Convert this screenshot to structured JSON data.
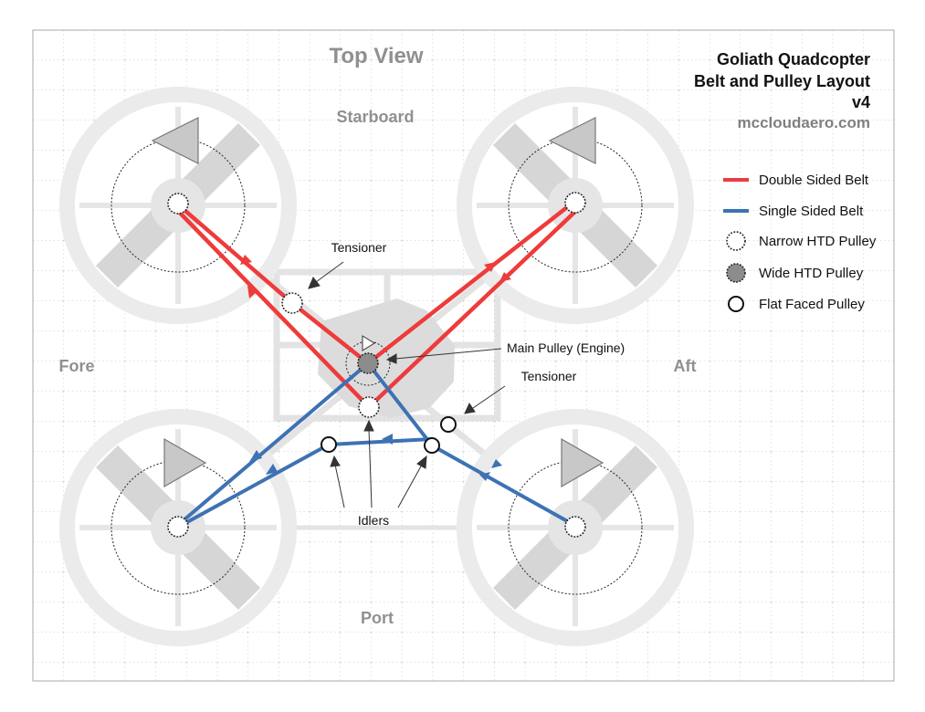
{
  "title": {
    "view": "Top View",
    "line1": "Goliath Quadcopter",
    "line2": "Belt and Pulley Layout",
    "line3": "v4",
    "website": "mccloudaero.com"
  },
  "directions": {
    "top": "Starboard",
    "bottom": "Port",
    "left": "Fore",
    "right": "Aft"
  },
  "callouts": {
    "tensioner_upper": "Tensioner",
    "tensioner_lower": "Tensioner",
    "main_pulley": "Main Pulley (Engine)",
    "idlers": "Idlers"
  },
  "legend": {
    "double_belt": "Double Sided Belt",
    "single_belt": "Single Sided Belt",
    "narrow_pulley": "Narrow HTD Pulley",
    "wide_pulley": "Wide HTD Pulley",
    "flat_pulley": "Flat Faced Pulley"
  },
  "colors": {
    "double_belt": "#ee3b3b",
    "single_belt": "#3d72b4",
    "frame": "#e2e2e2",
    "grid": "#bdbdbd",
    "text_gray": "#909090"
  },
  "icons": {
    "narrow_pulley": "dotted-circle-icon",
    "wide_pulley": "gray-serrated-circle-icon",
    "flat_pulley": "plain-circle-icon",
    "rotation": "triangle-arrow-icon"
  }
}
